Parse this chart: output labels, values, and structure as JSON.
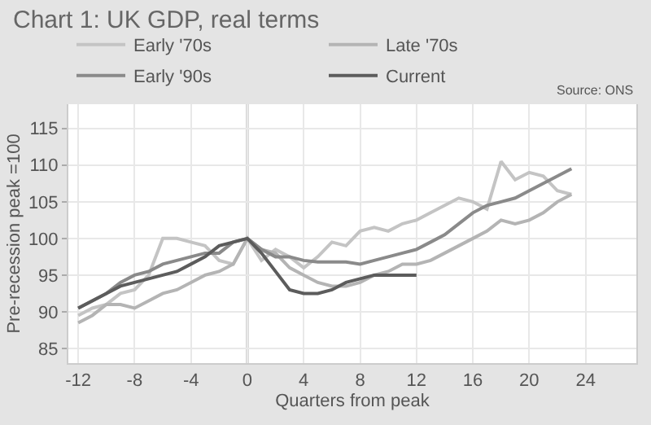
{
  "chart_data": {
    "type": "line",
    "title": "Chart 1: UK GDP, real terms",
    "xlabel": "Quarters from peak",
    "ylabel": "Pre-recession peak =100",
    "annotations": [
      "Source: ONS"
    ],
    "xlim": [
      -12.7,
      27.6
    ],
    "xticks": [
      -12,
      -8,
      -4,
      0,
      4,
      8,
      12,
      16,
      20,
      24
    ],
    "ylim": [
      83,
      118.3
    ],
    "yticks": [
      85,
      90,
      95,
      100,
      105,
      110,
      115
    ],
    "grid": true,
    "legend": "top left",
    "marker": "none",
    "line_style": "solid",
    "ref_lines": [
      {
        "axis": "x",
        "value": 0,
        "color": "#b0b0b0"
      }
    ],
    "x": [
      -12,
      -11,
      -10,
      -9,
      -8,
      -7,
      -6,
      -5,
      -4,
      -3,
      -2,
      -1,
      0,
      1,
      2,
      3,
      4,
      5,
      6,
      7,
      8,
      9,
      10,
      11,
      12,
      13,
      14,
      15,
      16,
      17,
      18,
      19,
      20,
      21,
      22,
      23
    ],
    "series": [
      {
        "name": "Early '70s",
        "color": "#c4c4c4",
        "values": [
          89.5,
          90.5,
          91,
          92.5,
          93,
          95,
          100,
          100,
          99.5,
          99,
          97,
          96.5,
          100,
          97,
          98.5,
          97.5,
          96,
          97.5,
          99.5,
          99,
          101,
          101.5,
          101,
          102,
          102.5,
          103.5,
          104.5,
          105.5,
          105,
          104,
          110.5,
          108,
          109,
          108.5,
          106.5,
          106
        ]
      },
      {
        "name": "Late '70s",
        "color": "#b4b4b4",
        "values": [
          88.5,
          89.5,
          91,
          91,
          90.5,
          91.5,
          92.5,
          93,
          94,
          95,
          95.5,
          96.5,
          100,
          98.5,
          98,
          96,
          95,
          94,
          93.5,
          93.5,
          94,
          95,
          95.5,
          96.5,
          96.5,
          97,
          98,
          99,
          100,
          101,
          102.5,
          102,
          102.5,
          103.5,
          105,
          106
        ]
      },
      {
        "name": "Early '90s",
        "color": "#8a8a8a",
        "values": [
          90.5,
          91.5,
          92.5,
          94,
          95,
          95.5,
          96.5,
          97,
          97.5,
          98,
          98,
          99.5,
          100,
          98.5,
          97.5,
          97.5,
          97,
          96.8,
          96.8,
          96.8,
          96.5,
          97,
          97.5,
          98,
          98.5,
          99.5,
          100.5,
          102,
          103.5,
          104.5,
          105,
          105.5,
          106.5,
          107.5,
          108.5,
          109.5
        ]
      },
      {
        "name": "Current",
        "color": "#5c5c5c",
        "values": [
          90.5,
          91.5,
          92.5,
          93.5,
          94,
          94.5,
          95,
          95.5,
          96.5,
          97.5,
          99,
          99.5,
          100,
          98,
          95.5,
          93,
          92.5,
          92.5,
          93,
          94,
          94.5,
          95,
          95,
          95,
          95,
          null,
          null,
          null,
          null,
          null,
          null,
          null,
          null,
          null,
          null,
          null
        ]
      }
    ]
  }
}
